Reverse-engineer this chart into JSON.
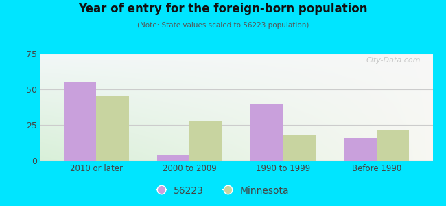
{
  "title": "Year of entry for the foreign-born population",
  "subtitle": "(Note: State values scaled to 56223 population)",
  "categories": [
    "2010 or later",
    "2000 to 2009",
    "1990 to 1999",
    "Before 1990"
  ],
  "values_56223": [
    55,
    4,
    40,
    16
  ],
  "values_minnesota": [
    45,
    28,
    18,
    21
  ],
  "color_56223": "#c9a0dc",
  "color_minnesota": "#c8d4a0",
  "ylim": [
    0,
    75
  ],
  "yticks": [
    0,
    25,
    50,
    75
  ],
  "background_outer": "#00e5ff",
  "bar_width": 0.35,
  "legend_label_56223": "56223",
  "legend_label_minnesota": "Minnesota",
  "watermark": "City-Data.com"
}
